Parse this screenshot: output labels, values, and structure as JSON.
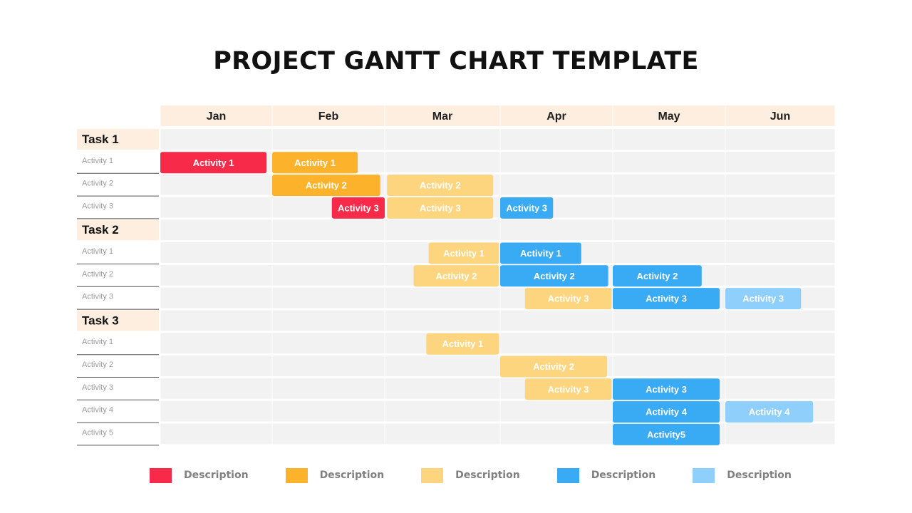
{
  "title": "PROJECT GANTT CHART TEMPLATE",
  "colors": {
    "red": "#f72a4a",
    "orange": "#fdb22c",
    "light_orange": "#fdd57e",
    "blue": "#39aaf4",
    "light_blue": "#8fcffb",
    "header_bg": "#fdeedf",
    "grid_bg": "#f2f2f2"
  },
  "chart_data": {
    "type": "gantt",
    "months": [
      "Jan",
      "Feb",
      "Mar",
      "Apr",
      "May",
      "Jun"
    ],
    "tasks": [
      {
        "name": "Task 1",
        "rows": [
          {
            "label": "Activity 1",
            "bars": [
              {
                "text": "Activity 1",
                "start": 0.0,
                "end": 0.95,
                "color": "red"
              },
              {
                "text": "Activity 1",
                "start": 1.0,
                "end": 1.76,
                "color": "orange"
              }
            ]
          },
          {
            "label": "Activity 2",
            "bars": [
              {
                "text": "Activity 2",
                "start": 1.0,
                "end": 1.96,
                "color": "orange"
              },
              {
                "text": "Activity 2",
                "start": 2.02,
                "end": 2.94,
                "color": "light_orange"
              }
            ]
          },
          {
            "label": "Activity 3",
            "bars": [
              {
                "text": "Activity 3",
                "start": 1.53,
                "end": 2.0,
                "color": "red"
              },
              {
                "text": "Activity 3",
                "start": 2.02,
                "end": 2.94,
                "color": "light_orange"
              },
              {
                "text": "Activity 3",
                "start": 3.0,
                "end": 3.47,
                "color": "blue"
              }
            ]
          }
        ]
      },
      {
        "name": "Task 2",
        "rows": [
          {
            "label": "Activity 1",
            "bars": [
              {
                "text": "Activity 1",
                "start": 2.38,
                "end": 2.99,
                "color": "light_orange"
              },
              {
                "text": "Activity 1",
                "start": 3.0,
                "end": 3.72,
                "color": "blue"
              }
            ]
          },
          {
            "label": "Activity 2",
            "bars": [
              {
                "text": "Activity 2",
                "start": 2.25,
                "end": 2.99,
                "color": "light_orange"
              },
              {
                "text": "Activity 2",
                "start": 3.0,
                "end": 3.96,
                "color": "blue"
              },
              {
                "text": "Activity 2",
                "start": 4.0,
                "end": 4.79,
                "color": "blue"
              }
            ]
          },
          {
            "label": "Activity 3",
            "bars": [
              {
                "text": "Activity 3",
                "start": 3.22,
                "end": 3.99,
                "color": "light_orange"
              },
              {
                "text": "Activity 3",
                "start": 4.0,
                "end": 4.95,
                "color": "blue"
              },
              {
                "text": "Activity 3",
                "start": 5.0,
                "end": 5.69,
                "color": "light_blue"
              }
            ]
          }
        ]
      },
      {
        "name": "Task 3",
        "rows": [
          {
            "label": "Activity 1",
            "bars": [
              {
                "text": "Activity 1",
                "start": 2.36,
                "end": 2.99,
                "color": "light_orange"
              }
            ]
          },
          {
            "label": "Activity 2",
            "bars": [
              {
                "text": "Activity 2",
                "start": 3.0,
                "end": 3.95,
                "color": "light_orange"
              }
            ]
          },
          {
            "label": "Activity 3",
            "bars": [
              {
                "text": "Activity 3",
                "start": 3.22,
                "end": 3.99,
                "color": "light_orange"
              },
              {
                "text": "Activity 3",
                "start": 4.0,
                "end": 4.95,
                "color": "blue"
              }
            ]
          },
          {
            "label": "Activity 4",
            "bars": [
              {
                "text": "Activity 4",
                "start": 4.0,
                "end": 4.95,
                "color": "blue"
              },
              {
                "text": "Activity 4",
                "start": 5.0,
                "end": 5.8,
                "color": "light_blue"
              }
            ]
          },
          {
            "label": "Activity 5",
            "bars": [
              {
                "text": "Activity5",
                "start": 4.0,
                "end": 4.95,
                "color": "blue"
              }
            ]
          }
        ]
      }
    ],
    "legend": [
      {
        "color": "red",
        "text": "Description"
      },
      {
        "color": "orange",
        "text": "Description"
      },
      {
        "color": "light_orange",
        "text": "Description"
      },
      {
        "color": "blue",
        "text": "Description"
      },
      {
        "color": "light_blue",
        "text": "Description"
      }
    ]
  }
}
